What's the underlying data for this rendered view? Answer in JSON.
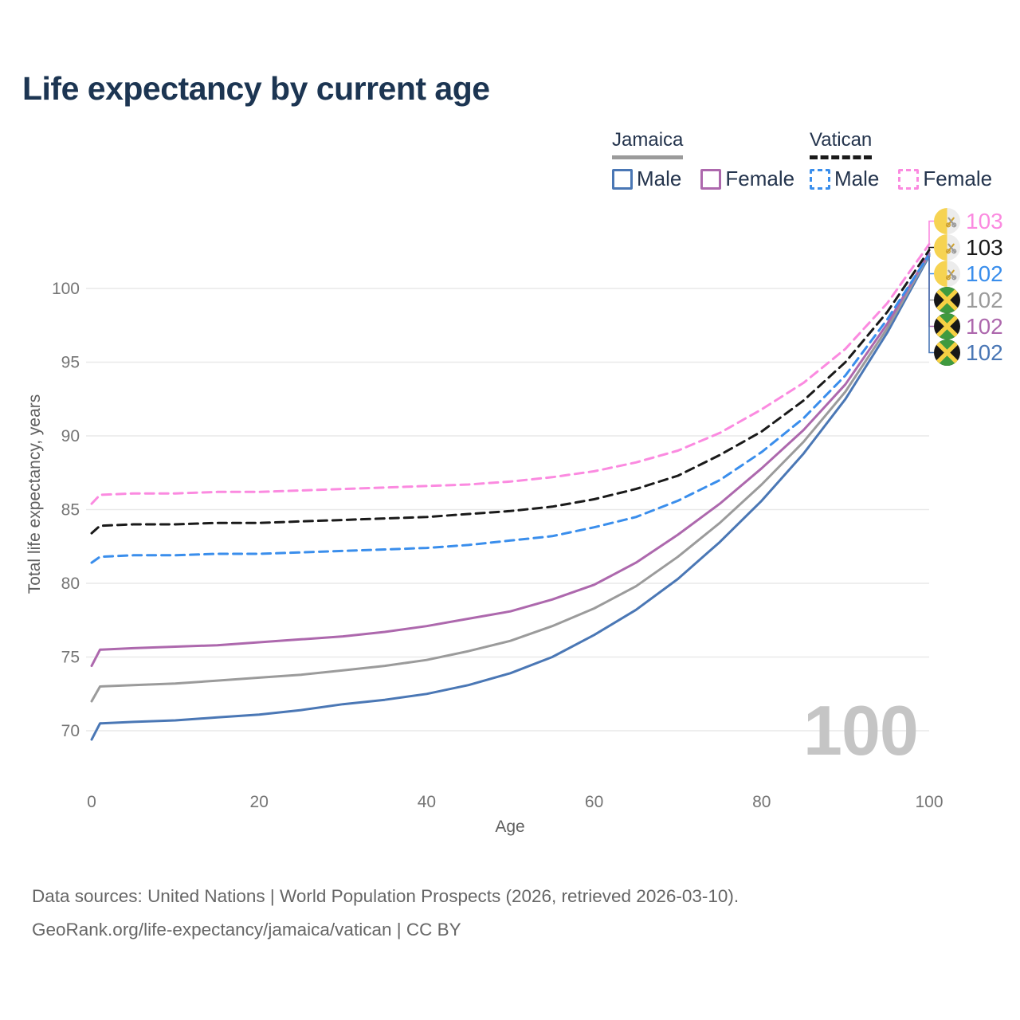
{
  "title": "Life expectancy by current age",
  "legend": {
    "jamaica": {
      "label": "Jamaica",
      "male": "Male",
      "female": "Female"
    },
    "vatican": {
      "label": "Vatican",
      "male": "Male",
      "female": "Female"
    }
  },
  "axes": {
    "x_label": "Age",
    "y_label": "Total life expectancy, years"
  },
  "watermark": "100",
  "end_labels": [
    {
      "value": "103",
      "series": "vatican_female",
      "flag": "vatican",
      "color": "#fb8ae0"
    },
    {
      "value": "103",
      "series": "vatican_total",
      "flag": "vatican",
      "color": "#1a1a1a"
    },
    {
      "value": "102",
      "series": "vatican_male",
      "flag": "vatican",
      "color": "#3a8eec"
    },
    {
      "value": "102",
      "series": "jamaica_total",
      "flag": "jamaica",
      "color": "#9b9b9b"
    },
    {
      "value": "102",
      "series": "jamaica_female",
      "flag": "jamaica",
      "color": "#ad68ad"
    },
    {
      "value": "102",
      "series": "jamaica_male",
      "flag": "jamaica",
      "color": "#4a77b5"
    }
  ],
  "footer": {
    "line1": "Data sources: United Nations | World Population Prospects (2026, retrieved 2026-03-10).",
    "line2": "GeoRank.org/life-expectancy/jamaica/vatican | CC BY"
  },
  "chart_data": {
    "type": "line",
    "title": "Life expectancy by current age",
    "xlabel": "Age",
    "ylabel": "Total life expectancy, years",
    "x_ticks": [
      0,
      20,
      40,
      60,
      80,
      100
    ],
    "y_ticks": [
      70,
      75,
      80,
      85,
      90,
      95,
      100
    ],
    "xlim": [
      0,
      100
    ],
    "ylim_shown": [
      70,
      100
    ],
    "grid": "horizontal-only",
    "legend_position": "top-right",
    "ages": [
      0,
      1,
      5,
      10,
      15,
      20,
      25,
      30,
      35,
      40,
      45,
      50,
      55,
      60,
      65,
      70,
      75,
      80,
      85,
      90,
      95,
      100
    ],
    "series": [
      {
        "key": "jamaica_male",
        "name": "Jamaica Male",
        "color": "#4a77b5",
        "dashed": false,
        "values": [
          69.4,
          70.5,
          70.6,
          70.7,
          70.9,
          71.1,
          71.4,
          71.8,
          72.1,
          72.5,
          73.1,
          73.9,
          75.0,
          76.5,
          78.2,
          80.3,
          82.8,
          85.6,
          88.8,
          92.5,
          97.0,
          102.2
        ]
      },
      {
        "key": "jamaica_total",
        "name": "Jamaica",
        "color": "#9b9b9b",
        "dashed": false,
        "values": [
          72.0,
          73.0,
          73.1,
          73.2,
          73.4,
          73.6,
          73.8,
          74.1,
          74.4,
          74.8,
          75.4,
          76.1,
          77.1,
          78.3,
          79.8,
          81.8,
          84.1,
          86.7,
          89.6,
          93.0,
          97.3,
          102.3
        ]
      },
      {
        "key": "jamaica_female",
        "name": "Jamaica Female",
        "color": "#ad68ad",
        "dashed": false,
        "values": [
          74.4,
          75.5,
          75.6,
          75.7,
          75.8,
          76.0,
          76.2,
          76.4,
          76.7,
          77.1,
          77.6,
          78.1,
          78.9,
          79.9,
          81.4,
          83.3,
          85.4,
          87.8,
          90.4,
          93.5,
          97.6,
          102.4
        ]
      },
      {
        "key": "vatican_male",
        "name": "Vatican Male",
        "color": "#3a8eec",
        "dashed": true,
        "values": [
          81.4,
          81.8,
          81.9,
          81.9,
          82.0,
          82.0,
          82.1,
          82.2,
          82.3,
          82.4,
          82.6,
          82.9,
          83.2,
          83.8,
          84.5,
          85.6,
          87.0,
          88.9,
          91.2,
          94.1,
          97.9,
          102.3
        ]
      },
      {
        "key": "vatican_total",
        "name": "Vatican",
        "color": "#1a1a1a",
        "dashed": true,
        "values": [
          83.4,
          83.9,
          84.0,
          84.0,
          84.1,
          84.1,
          84.2,
          84.3,
          84.4,
          84.5,
          84.7,
          84.9,
          85.2,
          85.7,
          86.4,
          87.3,
          88.7,
          90.3,
          92.4,
          95.0,
          98.4,
          102.6
        ]
      },
      {
        "key": "vatican_female",
        "name": "Vatican Female",
        "color": "#fb8ae0",
        "dashed": true,
        "values": [
          85.4,
          86.0,
          86.1,
          86.1,
          86.2,
          86.2,
          86.3,
          86.4,
          86.5,
          86.6,
          86.7,
          86.9,
          87.2,
          87.6,
          88.2,
          89.0,
          90.2,
          91.8,
          93.6,
          95.9,
          99.0,
          103.0
        ]
      }
    ]
  }
}
